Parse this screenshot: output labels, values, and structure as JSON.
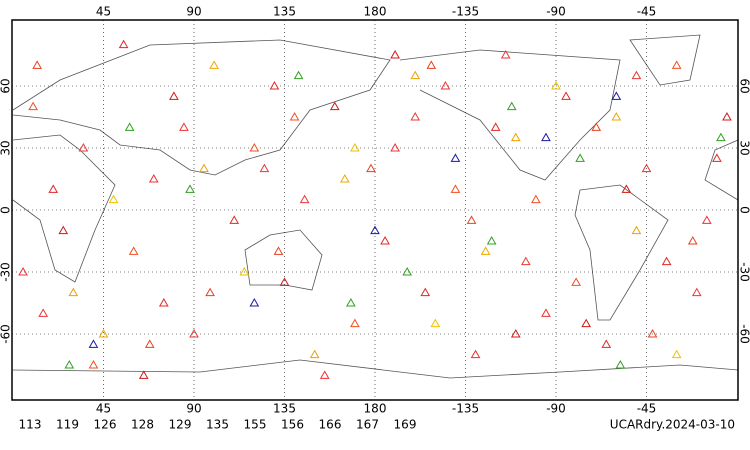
{
  "chart_data": {
    "type": "scatter",
    "title": "UCARdry.2024-03-10",
    "xlim": [
      0,
      360
    ],
    "ylim": [
      -90,
      90
    ],
    "xticks": [
      45,
      90,
      135,
      180,
      {
        "value": 225,
        "label": "-135"
      },
      {
        "value": 270,
        "label": "-90"
      },
      {
        "value": 315,
        "label": "-45"
      }
    ],
    "yticks": [
      60,
      30,
      0,
      -30,
      -60
    ],
    "grid": true,
    "series": [
      {
        "name": "113",
        "color": "#f0a000",
        "x": [
          30,
          95,
          200,
          310,
          150,
          250
        ],
        "y": [
          -40,
          20,
          65,
          -10,
          -70,
          35
        ]
      },
      {
        "name": "119",
        "color": "#f05020",
        "x": [
          10,
          60,
          120,
          170,
          220,
          280,
          330,
          40,
          140,
          260
        ],
        "y": [
          50,
          -20,
          30,
          -55,
          10,
          -35,
          70,
          -75,
          45,
          5
        ]
      },
      {
        "name": "126",
        "color": "#e02828",
        "x": [
          20,
          75,
          130,
          185,
          240,
          295,
          350,
          55,
          110,
          205,
          275,
          325
        ],
        "y": [
          10,
          -45,
          60,
          -15,
          40,
          -65,
          25,
          80,
          -5,
          -40,
          55,
          -25
        ]
      },
      {
        "name": "128",
        "color": "#f0a800",
        "x": [
          45,
          165,
          235,
          300,
          100
        ],
        "y": [
          -60,
          15,
          -20,
          45,
          70
        ]
      },
      {
        "name": "129",
        "color": "#f03030",
        "x": [
          5,
          85,
          155,
          215,
          265,
          345,
          70,
          190,
          230,
          315
        ],
        "y": [
          -30,
          40,
          -80,
          60,
          -50,
          -5,
          15,
          30,
          -70,
          20
        ]
      },
      {
        "name": "135",
        "color": "#1818a8",
        "x": [
          180,
          265,
          40,
          300,
          120,
          220
        ],
        "y": [
          -10,
          35,
          -65,
          55,
          -45,
          25
        ]
      },
      {
        "name": "155",
        "color": "#e83838",
        "x": [
          35,
          90,
          145,
          200,
          255,
          310,
          15,
          125,
          245,
          340
        ],
        "y": [
          30,
          -60,
          5,
          45,
          -25,
          65,
          -50,
          20,
          75,
          -40
        ]
      },
      {
        "name": "156",
        "color": "#d01818",
        "x": [
          25,
          80,
          135,
          190,
          250,
          305,
          355,
          65,
          160,
          285
        ],
        "y": [
          -10,
          55,
          -35,
          75,
          -60,
          10,
          45,
          -80,
          50,
          -55
        ]
      },
      {
        "name": "166",
        "color": "#f0c000",
        "x": [
          50,
          115,
          210,
          270,
          330,
          170
        ],
        "y": [
          5,
          -30,
          -55,
          60,
          -70,
          30
        ]
      },
      {
        "name": "167",
        "color": "#e84020",
        "x": [
          12,
          68,
          132,
          178,
          228,
          290,
          338,
          98,
          208,
          318
        ],
        "y": [
          70,
          -65,
          -20,
          20,
          -5,
          40,
          -15,
          -40,
          70,
          -60
        ]
      },
      {
        "name": "169",
        "color": "#30a020",
        "x": [
          28,
          88,
          142,
          196,
          248,
          302,
          352,
          58,
          168,
          238,
          282
        ],
        "y": [
          -75,
          10,
          65,
          -30,
          50,
          -75,
          35,
          40,
          -45,
          -15,
          25
        ]
      }
    ]
  }
}
